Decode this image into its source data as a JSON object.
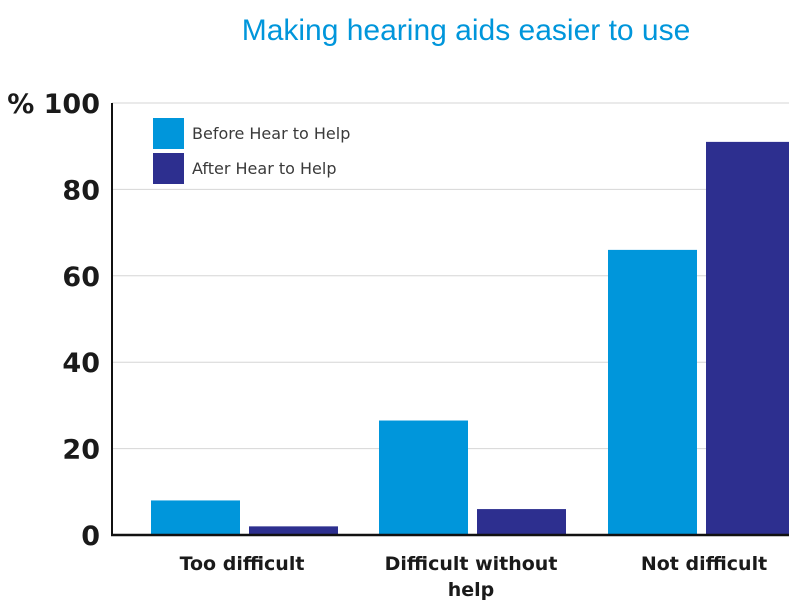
{
  "chart_data": {
    "type": "bar",
    "title": "Making hearing aids easier to use",
    "ylabel": "%",
    "ylim": [
      0,
      100
    ],
    "yticks": [
      "0",
      "20",
      "40",
      "60",
      "80",
      "100"
    ],
    "categories": [
      [
        "Too difficult"
      ],
      [
        "Difficult without",
        "help"
      ],
      [
        "Not difficult"
      ]
    ],
    "series": [
      {
        "name": "Before Hear to Help",
        "color": "#0096db",
        "values": [
          8,
          26.5,
          66
        ]
      },
      {
        "name": "After Hear to Help",
        "color": "#2d2f8f",
        "values": [
          2,
          6,
          91
        ]
      }
    ],
    "legend_position": "top-left",
    "grid": true,
    "title_color": "#0096db"
  }
}
